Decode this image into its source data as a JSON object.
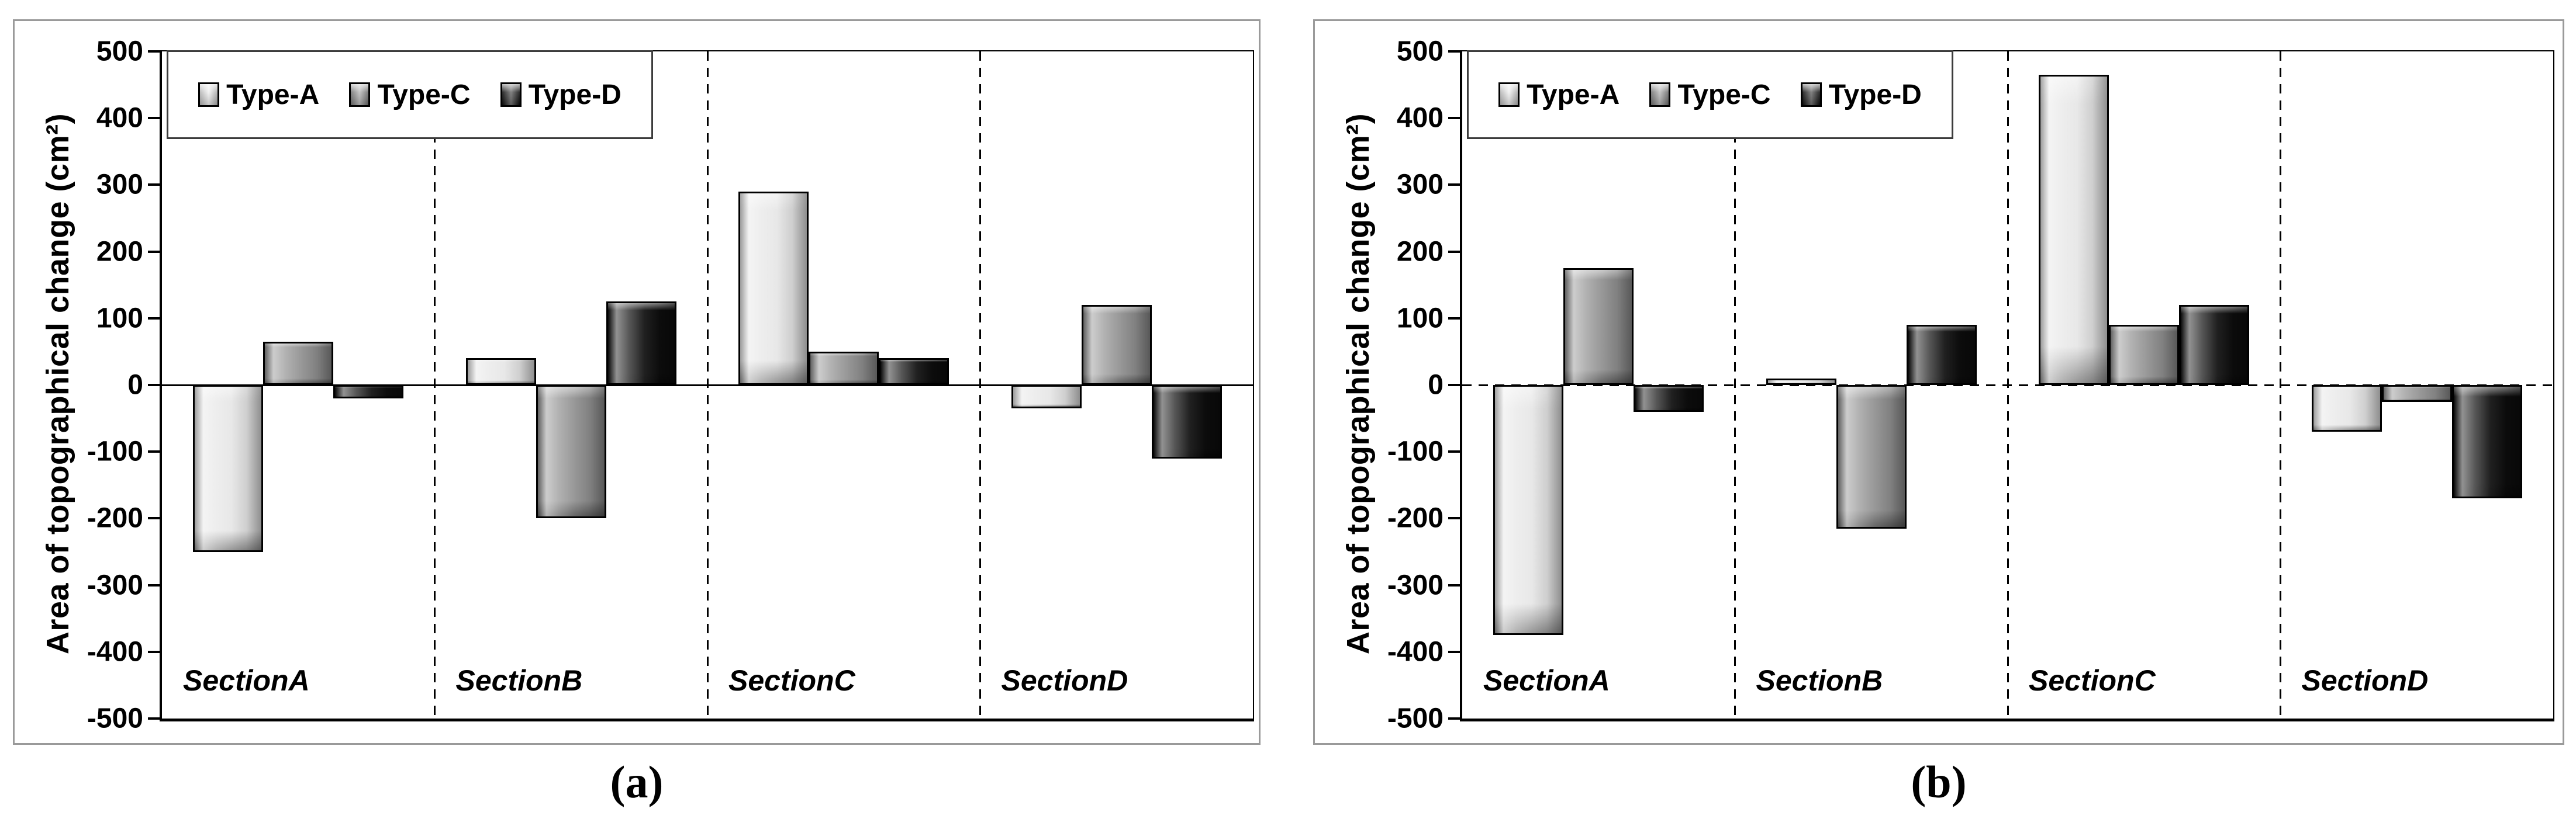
{
  "figure": {
    "kind": "two-panel grouped bar figure",
    "background": "#ffffff",
    "panel_border_color": "#9a9a9a",
    "axis_color": "#000000"
  },
  "series_styles": [
    {
      "name": "Type-A",
      "fill": "#e6e6e6"
    },
    {
      "name": "Type-C",
      "fill": "#8f8f8f"
    },
    {
      "name": "Type-D",
      "fill": "#0d0d0d"
    }
  ],
  "legend": {
    "entries": [
      "Type-A",
      "Type-C",
      "Type-D"
    ],
    "position": "top-left"
  },
  "chart_data": [
    {
      "panel": "a",
      "type": "bar",
      "caption": "(a)",
      "ylabel": "Area of topographical change (cm²)",
      "xlabel": "",
      "categories": [
        "SectionA",
        "SectionB",
        "SectionC",
        "SectionD"
      ],
      "series": [
        {
          "name": "Type-A",
          "values": [
            -250,
            40,
            290,
            -35
          ]
        },
        {
          "name": "Type-C",
          "values": [
            65,
            -200,
            50,
            120
          ]
        },
        {
          "name": "Type-D",
          "values": [
            -20,
            125,
            40,
            -110
          ]
        }
      ],
      "ylim": [
        -500,
        500
      ],
      "yticks": [
        500,
        400,
        300,
        200,
        100,
        0,
        -100,
        -200,
        -300,
        -400,
        -500
      ],
      "zero_line": "solid",
      "section_dividers": "dashed",
      "grid": false,
      "legend_position": "top-left"
    },
    {
      "panel": "b",
      "type": "bar",
      "caption": "(b)",
      "ylabel": "Area of topographical change (cm²)",
      "xlabel": "",
      "categories": [
        "SectionA",
        "SectionB",
        "SectionC",
        "SectionD"
      ],
      "series": [
        {
          "name": "Type-A",
          "values": [
            -375,
            10,
            465,
            -70
          ]
        },
        {
          "name": "Type-C",
          "values": [
            175,
            -215,
            90,
            -25
          ]
        },
        {
          "name": "Type-D",
          "values": [
            -40,
            90,
            120,
            -170
          ]
        }
      ],
      "ylim": [
        -500,
        500
      ],
      "yticks": [
        500,
        400,
        300,
        200,
        100,
        0,
        -100,
        -200,
        -300,
        -400,
        -500
      ],
      "zero_line": "dashed",
      "section_dividers": "dashed",
      "grid": false,
      "legend_position": "top-left"
    }
  ]
}
